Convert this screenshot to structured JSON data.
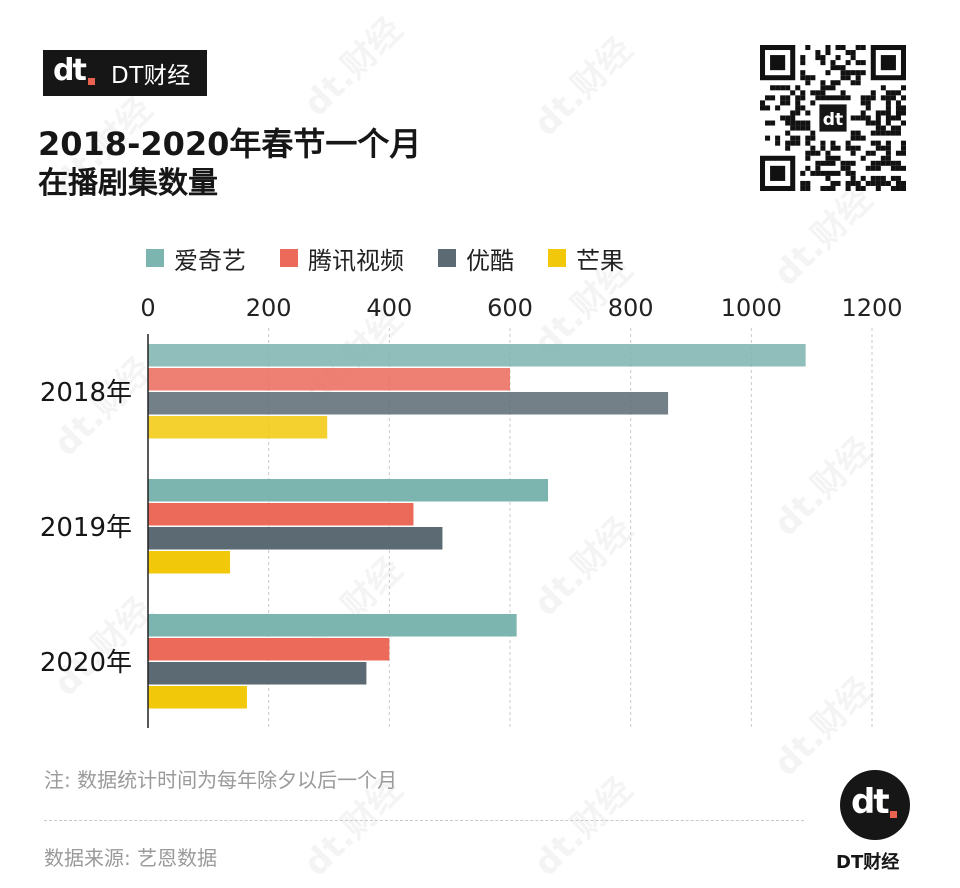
{
  "brand": {
    "name": "DT财经",
    "mark": "dt"
  },
  "title": {
    "line1": "2018-2020年春节一个月",
    "line2": "在播剧集数量"
  },
  "chart_data": {
    "type": "bar",
    "orientation": "horizontal",
    "categories": [
      "2018年",
      "2019年",
      "2020年"
    ],
    "series": [
      {
        "name": "爱奇艺",
        "color": "#7cb4af",
        "values": [
          1090,
          663,
          611
        ]
      },
      {
        "name": "腾讯视频",
        "color": "#eb6a5a",
        "values": [
          600,
          440,
          400
        ]
      },
      {
        "name": "优酷",
        "color": "#5b6a73",
        "values": [
          862,
          488,
          362
        ]
      },
      {
        "name": "芒果",
        "color": "#f2c90a",
        "values": [
          297,
          136,
          164
        ]
      }
    ],
    "xlim": [
      0,
      1200
    ],
    "xticks": [
      "0",
      "200",
      "400",
      "600",
      "800",
      "1000",
      "1200"
    ],
    "grid": "vertical-dashed",
    "legend": "top"
  },
  "note": "注: 数据统计时间为每年除夕以后一个月",
  "source": "数据来源: 艺恩数据",
  "corner_brand": {
    "name": "DT财经",
    "mark": "dt"
  },
  "watermark": "dt.财经"
}
